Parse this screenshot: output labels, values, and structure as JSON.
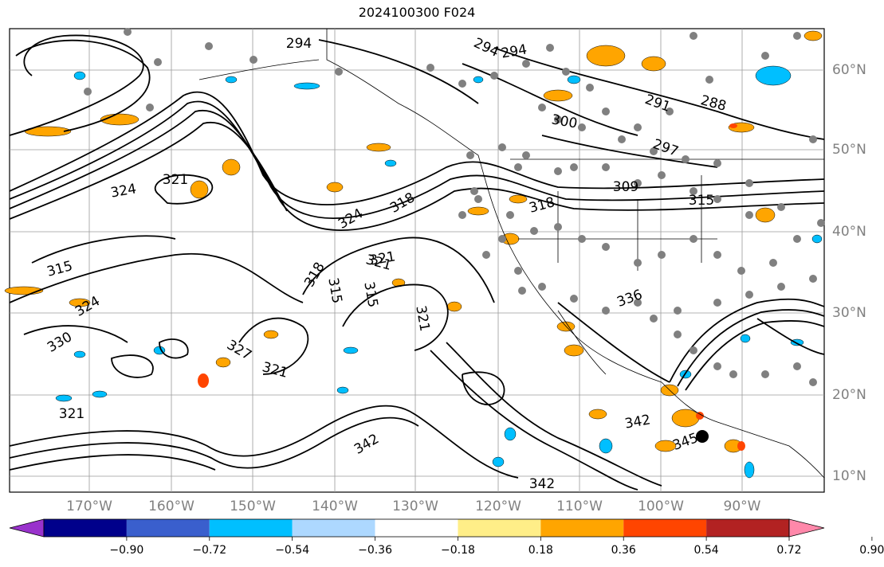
{
  "title": "2024100300 F024",
  "lon_labels": [
    "170°W",
    "160°W",
    "150°W",
    "140°W",
    "130°W",
    "120°W",
    "110°W",
    "100°W",
    "90°W"
  ],
  "lat_labels": [
    "60°N",
    "50°N",
    "40°N",
    "30°N",
    "20°N",
    "10°N"
  ],
  "contour_labels": [
    "294",
    "294",
    "294",
    "291",
    "288",
    "300",
    "297",
    "309",
    "315",
    "318",
    "318",
    "321",
    "321",
    "324",
    "324",
    "321",
    "315",
    "315",
    "318",
    "321",
    "321",
    "336",
    "342",
    "342",
    "342",
    "330",
    "321",
    "327",
    "324",
    "315",
    "345"
  ],
  "colorbar": {
    "ticks": [
      "−0.90",
      "−0.72",
      "−0.54",
      "−0.36",
      "−0.18",
      "0.18",
      "0.36",
      "0.54",
      "0.72",
      "0.90"
    ],
    "colors": [
      "#9932cc",
      "#00008b",
      "#3a5fcd",
      "#00bfff",
      "#add8ff",
      "#ffffff",
      "#ffee88",
      "#ffa500",
      "#ff4500",
      "#b22222",
      "#ff88aa"
    ]
  },
  "colors": {
    "land_edge": "#000000",
    "grid": "#808080",
    "positive_shade": "#ffa500",
    "negative_shade": "#00bfff",
    "station_dot": "#808080"
  }
}
